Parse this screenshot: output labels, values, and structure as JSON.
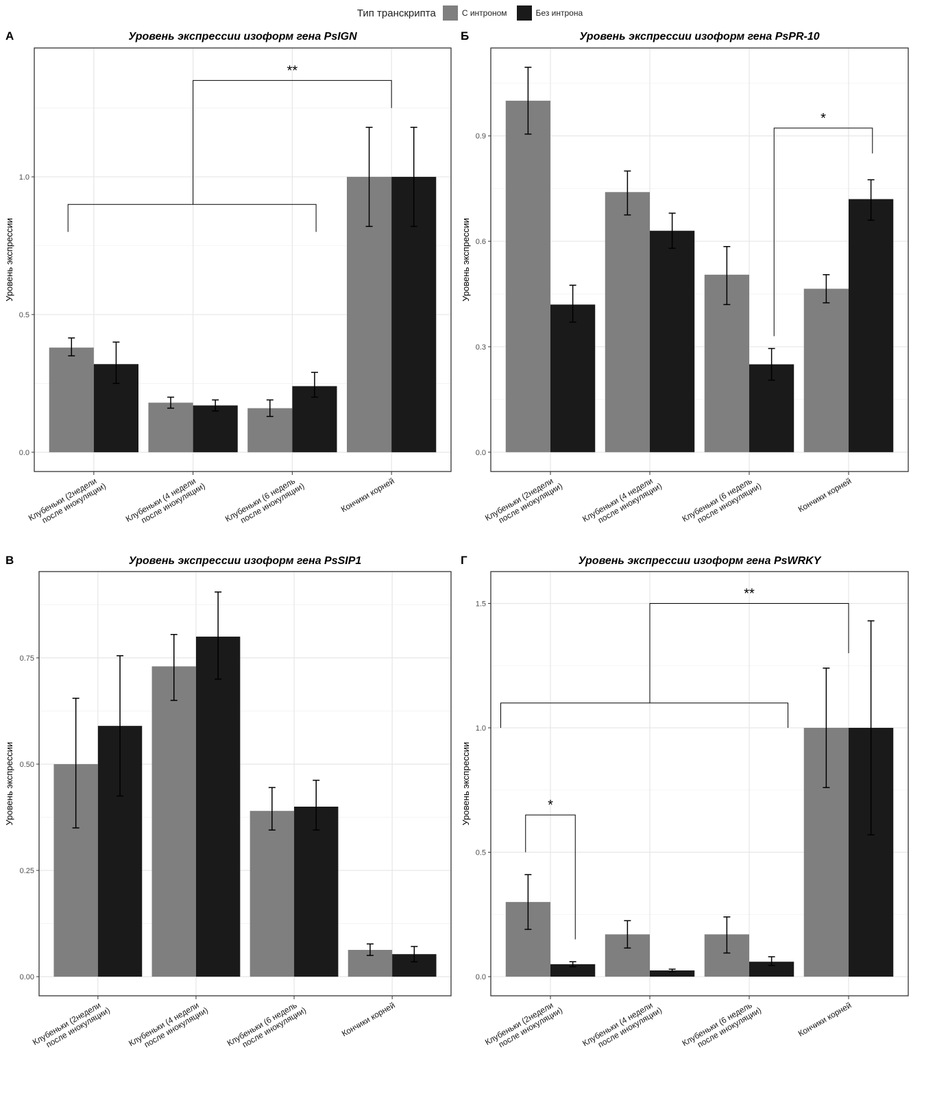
{
  "legend": {
    "title": "Тип транскрипта",
    "items": [
      {
        "label": "С интроном",
        "color": "#7f7f7f"
      },
      {
        "label": "Без интрона",
        "color": "#1a1a1a"
      }
    ]
  },
  "chart_data": [
    {
      "type": "bar",
      "panel": "А",
      "title": "Уровень экспрессии изоформ гена PsIGN",
      "ylabel": "Уровень экспрессии",
      "categories": [
        [
          "Клубеньки (2недели",
          "после инокуляции)"
        ],
        [
          "Клубеньки (4 недели",
          "после инокуляции)"
        ],
        [
          "Клубеньки (6 недель",
          "после инокуляции)"
        ],
        [
          "Кончики корней"
        ]
      ],
      "ylim": [
        -0.07,
        1.468
      ],
      "yticks": [
        0.0,
        0.5,
        1.0
      ],
      "ytick_labels": [
        "0.0",
        "0.5",
        "1.0"
      ],
      "series": [
        {
          "name": "С интроном",
          "values": [
            0.38,
            0.18,
            0.16,
            1.0
          ],
          "err_low": [
            0.35,
            0.16,
            0.13,
            0.82
          ],
          "err_high": [
            0.415,
            0.2,
            0.19,
            1.18
          ]
        },
        {
          "name": "Без интрона",
          "values": [
            0.32,
            0.17,
            0.24,
            1.0
          ],
          "err_low": [
            0.25,
            0.15,
            0.2,
            0.82
          ],
          "err_high": [
            0.4,
            0.19,
            0.29,
            1.18
          ]
        }
      ],
      "brackets": [
        {
          "x1": 0.74,
          "x2": 3.24,
          "y": 0.9,
          "y1": 0.8,
          "y2": 0.8,
          "label": ""
        },
        {
          "x1": 2.0,
          "x2": 4.0,
          "y": 1.35,
          "y1": 0.9,
          "y2": 1.25,
          "label": "**"
        }
      ]
    },
    {
      "type": "bar",
      "panel": "Б",
      "title": "Уровень экспрессии изоформ гена PsPR-10",
      "ylabel": "Уровень экспрессии",
      "categories": [
        [
          "Клубеньки (2недели",
          "после инокуляции)"
        ],
        [
          "Клубеньки (4 недели",
          "после инокуляции)"
        ],
        [
          "Клубеньки (6 недель",
          "после инокуляции)"
        ],
        [
          "Кончики корней"
        ]
      ],
      "ylim": [
        -0.055,
        1.15
      ],
      "yticks": [
        0.0,
        0.3,
        0.6,
        0.9
      ],
      "ytick_labels": [
        "0.0",
        "0.3",
        "0.6",
        "0.9"
      ],
      "series": [
        {
          "name": "С интроном",
          "values": [
            1.0,
            0.74,
            0.505,
            0.465
          ],
          "err_low": [
            0.905,
            0.675,
            0.42,
            0.425
          ],
          "err_high": [
            1.095,
            0.8,
            0.585,
            0.505
          ]
        },
        {
          "name": "Без интрона",
          "values": [
            0.42,
            0.63,
            0.25,
            0.72
          ],
          "err_low": [
            0.37,
            0.58,
            0.205,
            0.66
          ],
          "err_high": [
            0.475,
            0.68,
            0.295,
            0.775
          ]
        }
      ],
      "brackets": [
        {
          "x1": 3.25,
          "x2": 4.24,
          "y": 0.922,
          "y1": 0.33,
          "y2": 0.85,
          "label": "*"
        }
      ]
    },
    {
      "type": "bar",
      "panel": "В",
      "title": "Уровень экспрессии изоформ гена PsSIP1",
      "ylabel": "Уровень экспрессии",
      "categories": [
        [
          "Клубеньки (2недели",
          "после инокуляции)"
        ],
        [
          "Клубеньки (4 недели",
          "после инокуляции)"
        ],
        [
          "Клубеньки (6 недель",
          "после инокуляции)"
        ],
        [
          "Кончики корней"
        ]
      ],
      "ylim": [
        -0.045,
        0.953
      ],
      "yticks": [
        0.0,
        0.25,
        0.5,
        0.75
      ],
      "ytick_labels": [
        "0.00",
        "0.25",
        "0.50",
        "0.75"
      ],
      "series": [
        {
          "name": "С интроном",
          "values": [
            0.5,
            0.73,
            0.39,
            0.063
          ],
          "err_low": [
            0.35,
            0.65,
            0.345,
            0.05
          ],
          "err_high": [
            0.655,
            0.805,
            0.445,
            0.077
          ]
        },
        {
          "name": "Без интрона",
          "values": [
            0.59,
            0.8,
            0.4,
            0.053
          ],
          "err_low": [
            0.425,
            0.7,
            0.345,
            0.035
          ],
          "err_high": [
            0.755,
            0.905,
            0.462,
            0.071
          ]
        }
      ],
      "brackets": []
    },
    {
      "type": "bar",
      "panel": "Г",
      "title": "Уровень экспрессии изоформ гена PsWRKY",
      "ylabel": "Уровень экспрессии",
      "categories": [
        [
          "Клубеньки (2недели",
          "после инокуляции)"
        ],
        [
          "Клубеньки (4 недели",
          "после инокуляции)"
        ],
        [
          "Клубеньки (6 недель",
          "после инокуляции)"
        ],
        [
          "Кончики корней"
        ]
      ],
      "ylim": [
        -0.077,
        1.628
      ],
      "yticks": [
        0.0,
        0.5,
        1.0,
        1.5
      ],
      "ytick_labels": [
        "0.0",
        "0.5",
        "1.0",
        "1.5"
      ],
      "series": [
        {
          "name": "С интроном",
          "values": [
            0.3,
            0.17,
            0.17,
            1.0
          ],
          "err_low": [
            0.19,
            0.115,
            0.095,
            0.76
          ],
          "err_high": [
            0.41,
            0.225,
            0.24,
            1.24
          ]
        },
        {
          "name": "Без интрона",
          "values": [
            0.05,
            0.025,
            0.06,
            1.0
          ],
          "err_low": [
            0.04,
            0.02,
            0.045,
            0.57
          ],
          "err_high": [
            0.06,
            0.03,
            0.08,
            1.43
          ]
        }
      ],
      "brackets": [
        {
          "x1": 0.5,
          "x2": 3.39,
          "y": 1.1,
          "y1": 1.0,
          "y2": 1.0,
          "label": ""
        },
        {
          "x1": 2.0,
          "x2": 4.0,
          "y": 1.5,
          "y1": 1.1,
          "y2": 1.3,
          "label": "**"
        },
        {
          "x1": 0.75,
          "x2": 1.25,
          "y": 0.65,
          "y1": 0.5,
          "y2": 0.15,
          "label": "*"
        }
      ]
    }
  ]
}
